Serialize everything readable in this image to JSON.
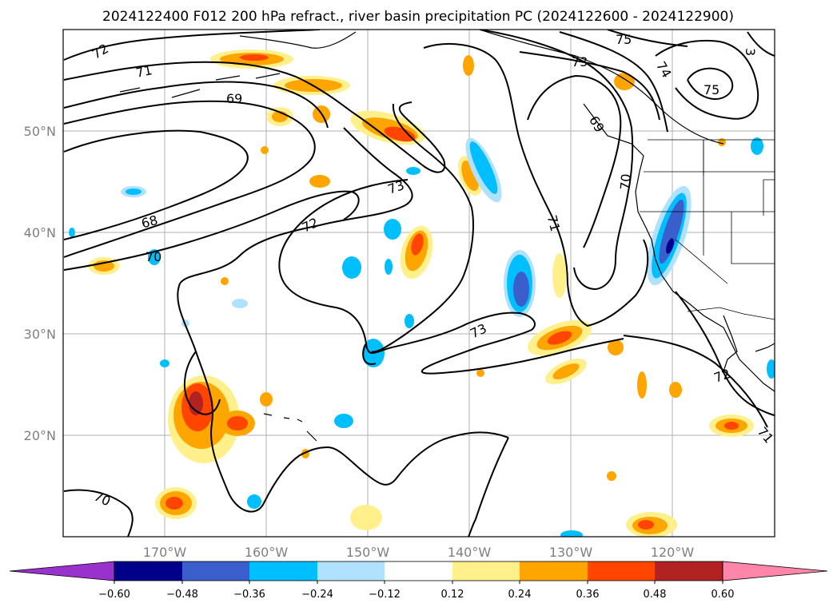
{
  "title": "2024122400 F012 200 hPa refract., river basin precipitation PC (2024122600 - 2024122900)",
  "map": {
    "lon_range": [
      -180,
      -110
    ],
    "lat_range": [
      10,
      60
    ],
    "lat_ticks": [
      {
        "lat": 50,
        "label": "50°N"
      },
      {
        "lat": 40,
        "label": "40°N"
      },
      {
        "lat": 30,
        "label": "30°N"
      },
      {
        "lat": 20,
        "label": "20°N"
      }
    ],
    "lon_ticks": [
      {
        "lon": -170,
        "label": "170°W"
      },
      {
        "lon": -160,
        "label": "160°W"
      },
      {
        "lon": -150,
        "label": "150°W"
      },
      {
        "lon": -140,
        "label": "140°W"
      },
      {
        "lon": -130,
        "label": "130°W"
      },
      {
        "lon": -120,
        "label": "120°W"
      }
    ],
    "gridlines": true,
    "contour_labels": [
      "72",
      "71",
      "69",
      "68",
      "70",
      "72",
      "73",
      "73",
      "71",
      "70",
      "69",
      "73",
      "75",
      "74",
      "75",
      "3",
      "70",
      "72",
      "71"
    ]
  },
  "colorbar": {
    "ticks": [
      "−0.60",
      "−0.48",
      "−0.36",
      "−0.24",
      "−0.12",
      "0.12",
      "0.24",
      "0.36",
      "0.48",
      "0.60"
    ],
    "colors": [
      "#9932cc",
      "#00008b",
      "#3a5fcd",
      "#00bfff",
      "#b0e2ff",
      "#ffffff",
      "#fff08c",
      "#ffa500",
      "#ff4500",
      "#b22222",
      "#ff86a8"
    ]
  }
}
